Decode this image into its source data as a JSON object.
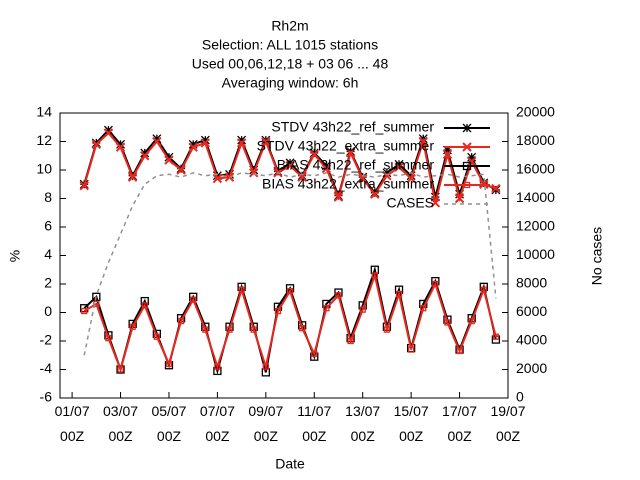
{
  "chart_data": {
    "type": "line",
    "title": "Rh2m",
    "subtitles": [
      "Selection: ALL   1015 stations",
      "Used  00,06,12,18 + 03 06 ... 48",
      "Averaging window:  6h"
    ],
    "xlabel": "Date",
    "ylabel": "%",
    "y2label": "No cases",
    "x": [
      0.5,
      1,
      1.5,
      2,
      2.5,
      3,
      3.5,
      4,
      4.5,
      5,
      5.5,
      6,
      6.5,
      7,
      7.5,
      8,
      8.5,
      9,
      9.5,
      10,
      10.5,
      11,
      11.5,
      12,
      12.5,
      13,
      13.5,
      14,
      14.5,
      15,
      15.5,
      16,
      16.5,
      17,
      17.5
    ],
    "xlim": [
      -0.5,
      18
    ],
    "xticks": [
      {
        "value": 0,
        "label": "01/07\n00Z"
      },
      {
        "value": 2,
        "label": "03/07\n00Z"
      },
      {
        "value": 4,
        "label": "05/07\n00Z"
      },
      {
        "value": 6,
        "label": "07/07\n00Z"
      },
      {
        "value": 8,
        "label": "09/07\n00Z"
      },
      {
        "value": 10,
        "label": "11/07\n00Z"
      },
      {
        "value": 12,
        "label": "13/07\n00Z"
      },
      {
        "value": 14,
        "label": "15/07\n00Z"
      },
      {
        "value": 16,
        "label": "17/07\n00Z"
      },
      {
        "value": 18,
        "label": "19/07\n00Z"
      }
    ],
    "ylim": [
      -6,
      14
    ],
    "yticks": [
      -6,
      -4,
      -2,
      0,
      2,
      4,
      6,
      8,
      10,
      12,
      14
    ],
    "y2lim": [
      0,
      20000
    ],
    "y2ticks": [
      0,
      2000,
      4000,
      6000,
      8000,
      10000,
      12000,
      14000,
      16000,
      18000,
      20000
    ],
    "legend": "top-right",
    "series": [
      {
        "name": "STDV 43h22_ref_summer",
        "color": "#000000",
        "marker": "star",
        "values": [
          9.0,
          11.9,
          12.8,
          11.8,
          9.6,
          11.2,
          12.2,
          10.9,
          10.1,
          11.8,
          12.1,
          9.6,
          9.7,
          12.1,
          10.0,
          12.1,
          9.9,
          10.5,
          9.6,
          11.2,
          10.3,
          8.2,
          11.3,
          9.5,
          8.4,
          9.8,
          10.4,
          9.6,
          12.2,
          8.1,
          11.4,
          8.3,
          10.9,
          9.1,
          8.6
        ]
      },
      {
        "name": "STDV 43h22_extra_summer",
        "color": "#e8281e",
        "marker": "cross",
        "values": [
          8.9,
          11.8,
          12.6,
          11.6,
          9.5,
          11.0,
          12.0,
          10.7,
          10.0,
          11.6,
          11.9,
          9.4,
          9.5,
          11.9,
          9.8,
          12.0,
          9.8,
          10.3,
          9.5,
          11.1,
          10.1,
          8.1,
          11.2,
          9.4,
          8.3,
          9.6,
          10.2,
          9.4,
          12.0,
          7.7,
          11.1,
          8.0,
          10.6,
          9.0,
          8.7
        ]
      },
      {
        "name": "BIAS 43h22_ref_summer",
        "color": "#000000",
        "marker": "square",
        "values": [
          0.3,
          1.1,
          -1.6,
          -4.0,
          -0.8,
          0.8,
          -1.5,
          -3.7,
          -0.4,
          1.1,
          -1.0,
          -4.1,
          -1.0,
          1.8,
          -1.0,
          -4.2,
          0.4,
          1.7,
          -0.9,
          -3.1,
          0.6,
          1.4,
          -1.8,
          0.5,
          3.0,
          -1.0,
          1.6,
          -2.5,
          0.6,
          2.2,
          -0.5,
          -2.6,
          -0.4,
          1.8,
          -1.9
        ]
      },
      {
        "name": "BIAS 43h22_extra_summer",
        "color": "#e8281e",
        "marker": "smallsquare",
        "values": [
          0.1,
          0.6,
          -1.8,
          -4.0,
          -1.0,
          0.5,
          -1.7,
          -3.6,
          -0.6,
          0.9,
          -1.2,
          -3.8,
          -1.2,
          1.6,
          -1.2,
          -3.8,
          0.1,
          1.5,
          -1.1,
          -2.9,
          0.3,
          1.2,
          -2.0,
          0.2,
          2.6,
          -1.2,
          1.3,
          -2.6,
          0.3,
          2.0,
          -0.7,
          -2.7,
          -0.6,
          1.6,
          -1.7
        ]
      },
      {
        "name": "CASES",
        "color": "#909090",
        "dashed": true,
        "axis": "y2",
        "values": [
          3000,
          7200,
          9500,
          11500,
          13500,
          15000,
          15600,
          15700,
          15500,
          15800,
          15600,
          15700,
          15500,
          15800,
          15700,
          15600,
          15800,
          15500,
          15700,
          15600,
          15800,
          15500,
          15700,
          15600,
          15500,
          15700,
          15600,
          15800,
          15500,
          15600,
          15700,
          15500,
          15600,
          15700,
          7000
        ]
      }
    ]
  }
}
